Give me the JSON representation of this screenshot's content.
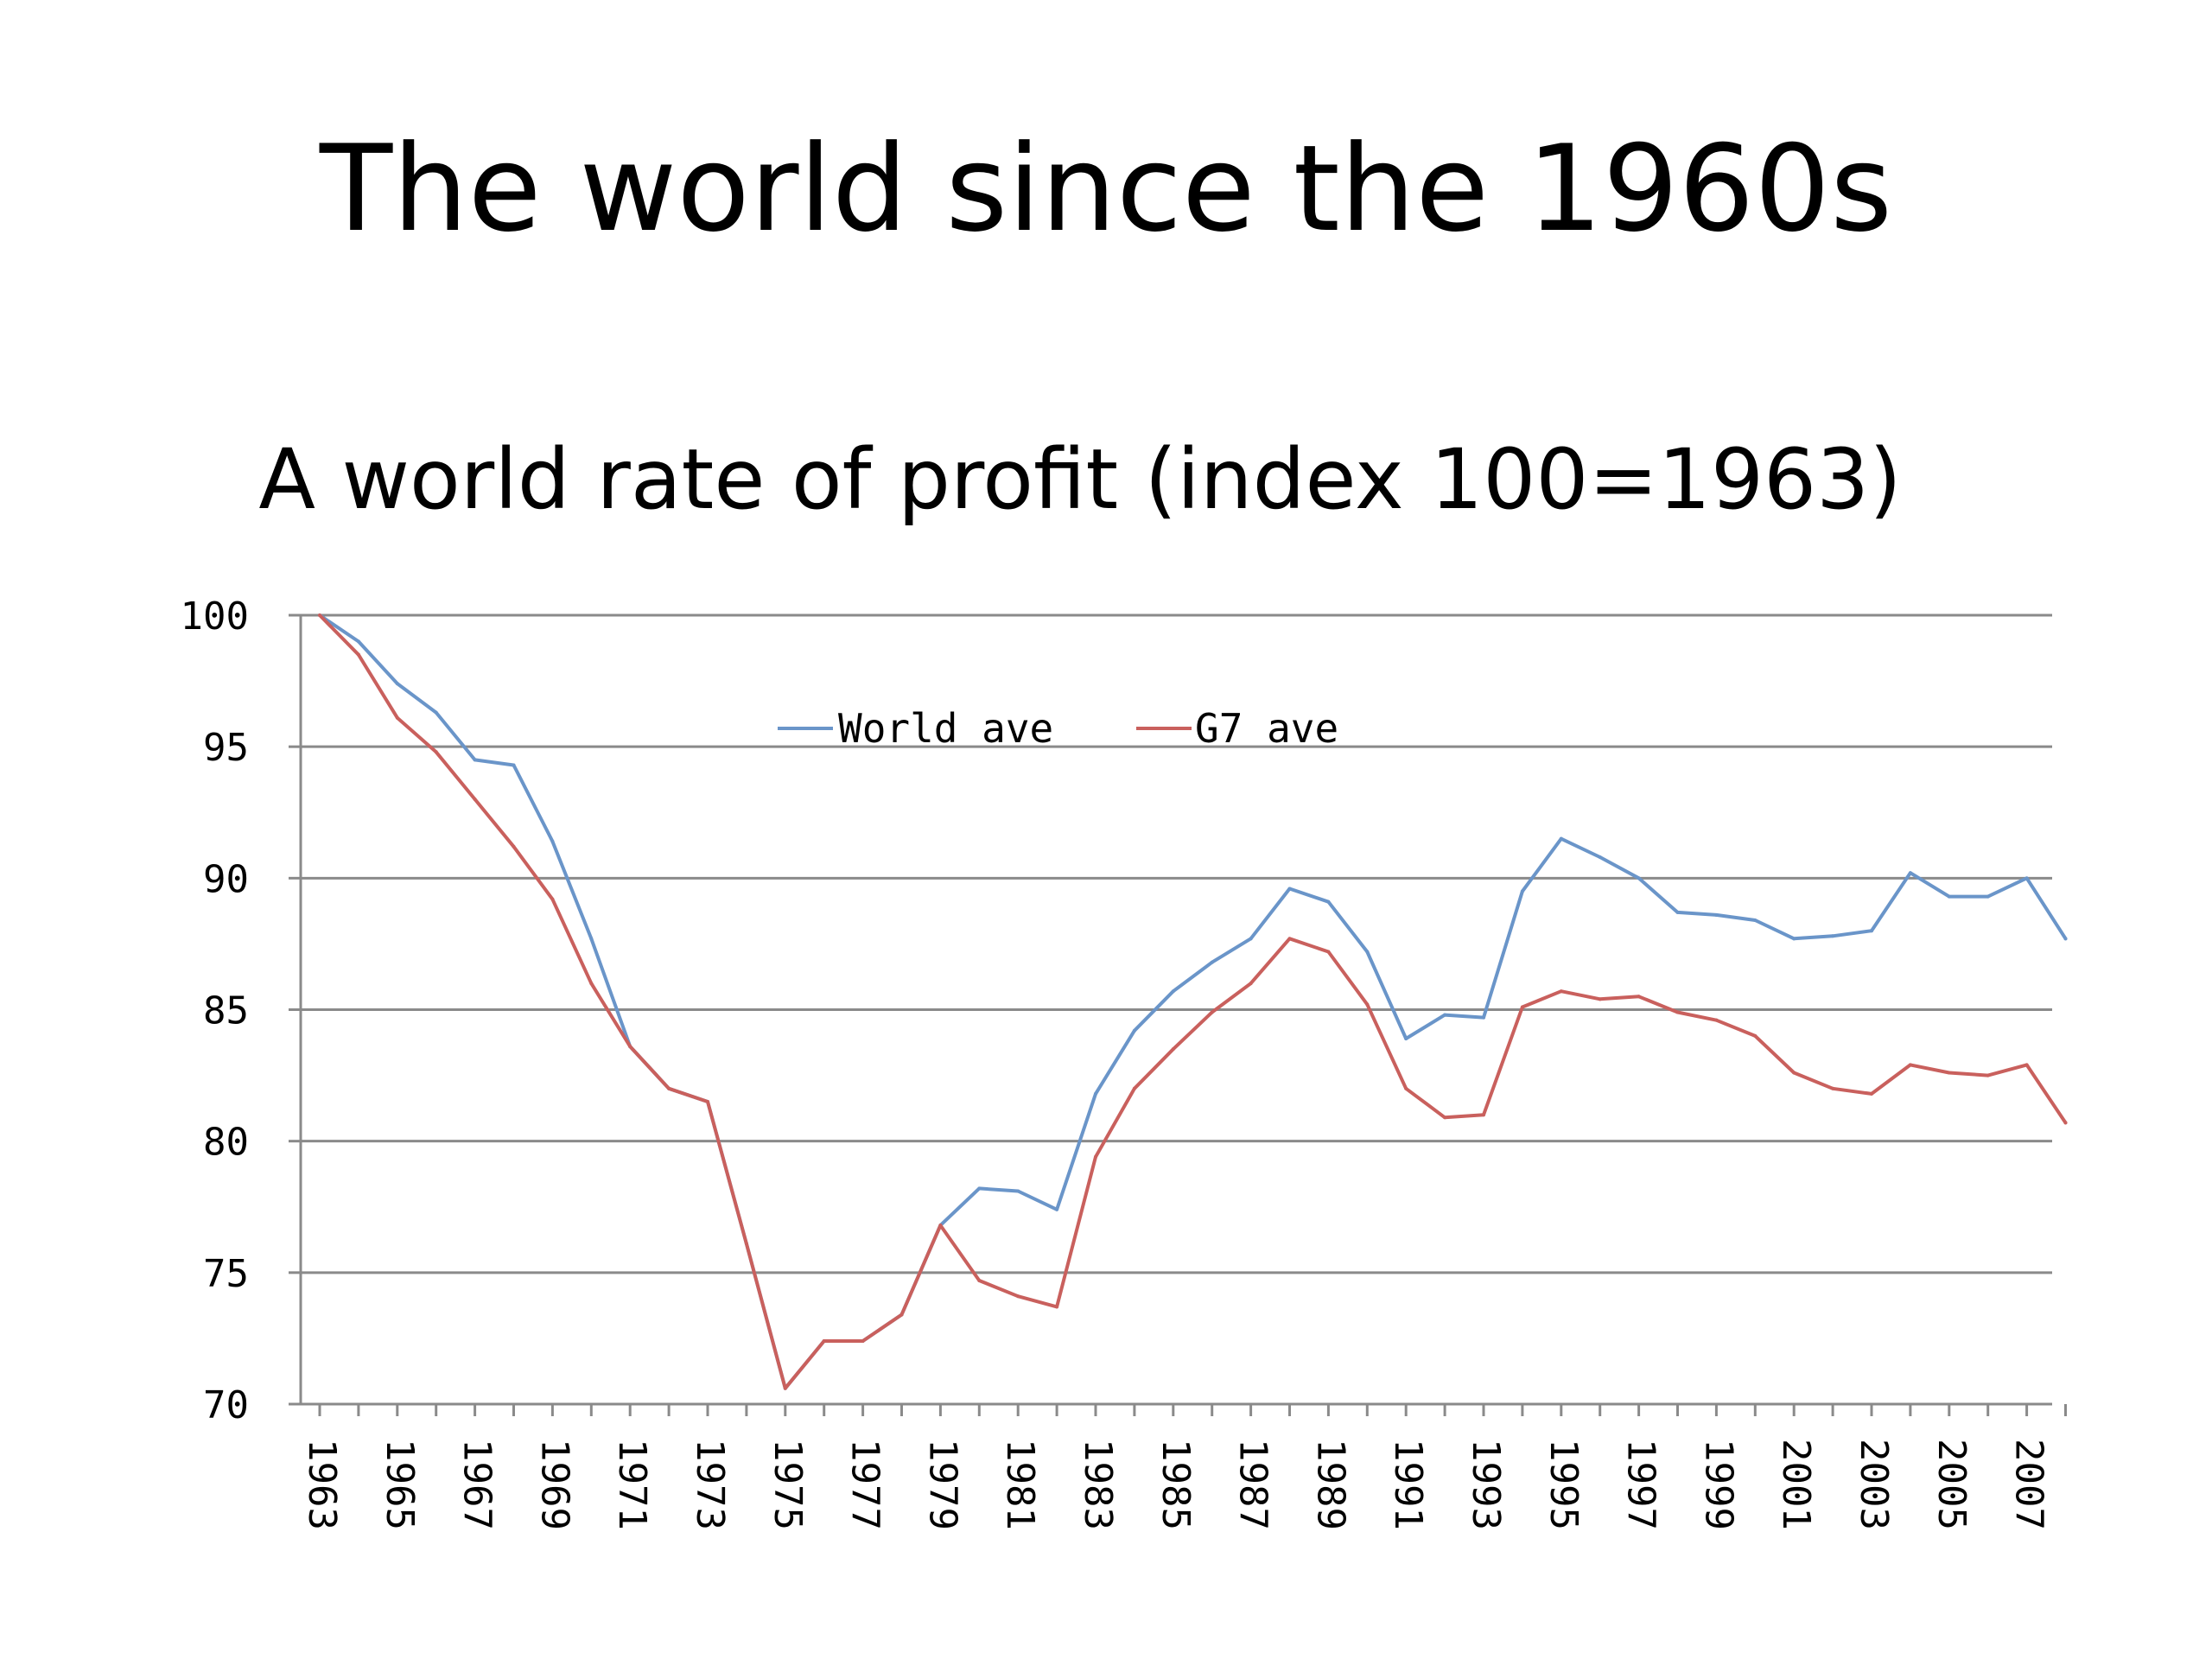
{
  "slide": {
    "title": "The world since the 1960s"
  },
  "chart_data": {
    "type": "line",
    "title": "A world rate of profit (index 100=1963)",
    "xlabel": "",
    "ylabel": "",
    "ylim": [
      70,
      100
    ],
    "yticks": [
      70,
      75,
      80,
      85,
      90,
      95,
      100
    ],
    "grid": true,
    "legend_position": "top-center",
    "x": [
      1963,
      1964,
      1965,
      1966,
      1967,
      1968,
      1969,
      1970,
      1971,
      1972,
      1973,
      1974,
      1975,
      1976,
      1977,
      1978,
      1979,
      1980,
      1981,
      1982,
      1983,
      1984,
      1985,
      1986,
      1987,
      1988,
      1989,
      1990,
      1991,
      1992,
      1993,
      1994,
      1995,
      1996,
      1997,
      1998,
      1999,
      2000,
      2001,
      2002,
      2003,
      2004,
      2005,
      2006,
      2007,
      2008
    ],
    "xtick_labels": [
      "1963",
      "1965",
      "1967",
      "1969",
      "1971",
      "1973",
      "1975",
      "1977",
      "1979",
      "1981",
      "1983",
      "1985",
      "1987",
      "1989",
      "1991",
      "1993",
      "1995",
      "1997",
      "1999",
      "2001",
      "2003",
      "2005",
      "2007"
    ],
    "series": [
      {
        "name": "World ave",
        "color": "#6a95c9",
        "values": [
          100,
          99,
          97.4,
          96.3,
          94.5,
          94.3,
          91.4,
          87.7,
          83.6,
          82,
          81.5,
          76.1,
          70.6,
          72.4,
          72.4,
          73.4,
          76.8,
          78.2,
          78.1,
          77.4,
          81.8,
          84.2,
          85.7,
          86.8,
          87.7,
          89.6,
          89.1,
          87.2,
          83.9,
          84.8,
          84.7,
          89.5,
          91.5,
          90.8,
          90.0,
          88.7,
          88.6,
          88.4,
          87.7,
          87.8,
          88.0,
          90.2,
          89.3,
          89.3,
          90.0,
          87.7
        ]
      },
      {
        "name": "G7 ave",
        "color": "#c9605d",
        "values": [
          100,
          98.5,
          96.1,
          94.8,
          93.0,
          91.2,
          89.2,
          86.0,
          83.6,
          82,
          81.5,
          76.1,
          70.6,
          72.4,
          72.4,
          73.4,
          76.8,
          74.7,
          74.1,
          73.7,
          79.4,
          82.0,
          83.5,
          84.9,
          86.0,
          87.7,
          87.2,
          85.2,
          82.0,
          80.9,
          81.0,
          85.1,
          85.7,
          85.4,
          85.5,
          84.9,
          84.6,
          84.0,
          82.6,
          82.0,
          81.8,
          82.9,
          82.6,
          82.5,
          82.9,
          80.7
        ]
      }
    ]
  }
}
